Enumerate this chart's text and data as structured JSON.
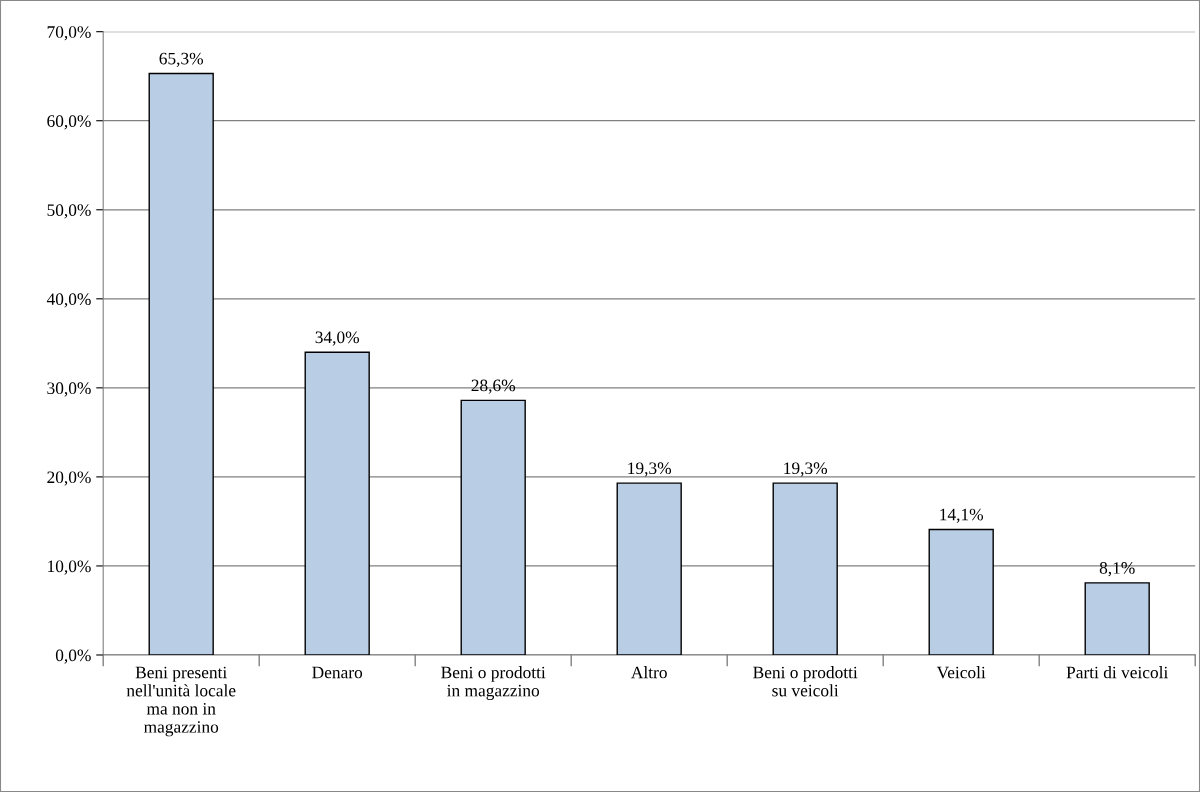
{
  "chart_data": {
    "type": "bar",
    "categories": [
      "Beni presenti\nnell'unità locale\nma non in\nmagazzino",
      "Denaro",
      "Beni o prodotti\nin magazzino",
      "Altro",
      "Beni o prodotti\nsu veicoli",
      "Veicoli",
      "Parti di veicoli"
    ],
    "values": [
      65.3,
      34.0,
      28.6,
      19.3,
      19.3,
      14.1,
      8.1
    ],
    "value_labels": [
      "65,3%",
      "34,0%",
      "28,6%",
      "19,3%",
      "19,3%",
      "14,1%",
      "8,1%"
    ],
    "color": "#b9cde5",
    "ylim": [
      0,
      70
    ],
    "yticks": [
      {
        "value": 0,
        "label": "0,0%"
      },
      {
        "value": 10,
        "label": "10,0%"
      },
      {
        "value": 20,
        "label": "20,0%"
      },
      {
        "value": 30,
        "label": "30,0%"
      },
      {
        "value": 40,
        "label": "40,0%"
      },
      {
        "value": 50,
        "label": "50,0%"
      },
      {
        "value": 60,
        "label": "60,0%"
      },
      {
        "value": 70,
        "label": "70,0%"
      }
    ],
    "grid": "y"
  }
}
